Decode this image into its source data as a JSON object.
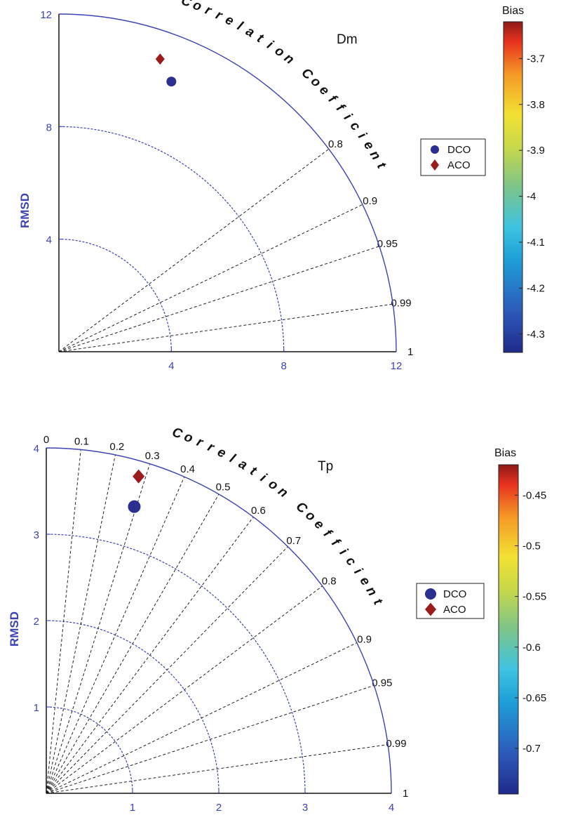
{
  "chart_data": [
    {
      "type": "taylor",
      "title": "Dm",
      "ylabel": "RMSD",
      "arc_label": "Correlation Coefficient",
      "rmax": 12,
      "radial_ticks": [
        4,
        8,
        12
      ],
      "rmsd_circles": [
        4,
        8
      ],
      "correlation_ticks": [
        0.8,
        0.9,
        0.95,
        0.99,
        1
      ],
      "correlation_tick_labels": [
        "0.8",
        "0.9",
        "0.95",
        "0.99",
        "1"
      ],
      "series": [
        {
          "name": "DCO",
          "marker": "circle",
          "x": 4.0,
          "y": 9.6,
          "color": "#2b2f8f"
        },
        {
          "name": "ACO",
          "marker": "diamond",
          "x": 3.6,
          "y": 10.4,
          "color": "#9b1c1c"
        }
      ],
      "colorbar": {
        "label": "Bias",
        "min": -4.34,
        "max": -3.62,
        "ticks": [
          -4.3,
          -4.2,
          -4.1,
          -4,
          -3.9,
          -3.8,
          -3.7
        ],
        "tick_labels": [
          "-4.3",
          "-4.2",
          "-4.1",
          "-4",
          "-3.9",
          "-3.8",
          "-3.7"
        ]
      }
    },
    {
      "type": "taylor",
      "title": "Tp",
      "ylabel": "RMSD",
      "arc_label": "Correlation Coefficient",
      "rmax": 4,
      "radial_ticks": [
        1,
        2,
        3,
        4
      ],
      "rmsd_circles": [
        1,
        2,
        3
      ],
      "correlation_ticks": [
        0,
        0.1,
        0.2,
        0.3,
        0.4,
        0.5,
        0.6,
        0.7,
        0.8,
        0.9,
        0.95,
        0.99,
        1
      ],
      "correlation_tick_labels": [
        "0",
        "0.1",
        "0.2",
        "0.3",
        "0.4",
        "0.5",
        "0.6",
        "0.7",
        "0.8",
        "0.9",
        "0.95",
        "0.99",
        "1"
      ],
      "series": [
        {
          "name": "DCO",
          "marker": "circle",
          "x": 1.02,
          "y": 3.32,
          "color": "#2b2f8f"
        },
        {
          "name": "ACO",
          "marker": "diamond",
          "x": 1.07,
          "y": 3.67,
          "color": "#9b1c1c"
        }
      ],
      "colorbar": {
        "label": "Bias",
        "min": -0.745,
        "max": -0.42,
        "ticks": [
          -0.7,
          -0.65,
          -0.6,
          -0.55,
          -0.5,
          -0.45
        ],
        "tick_labels": [
          "-0.7",
          "-0.65",
          "-0.6",
          "-0.55",
          "-0.5",
          "-0.45"
        ]
      }
    }
  ]
}
